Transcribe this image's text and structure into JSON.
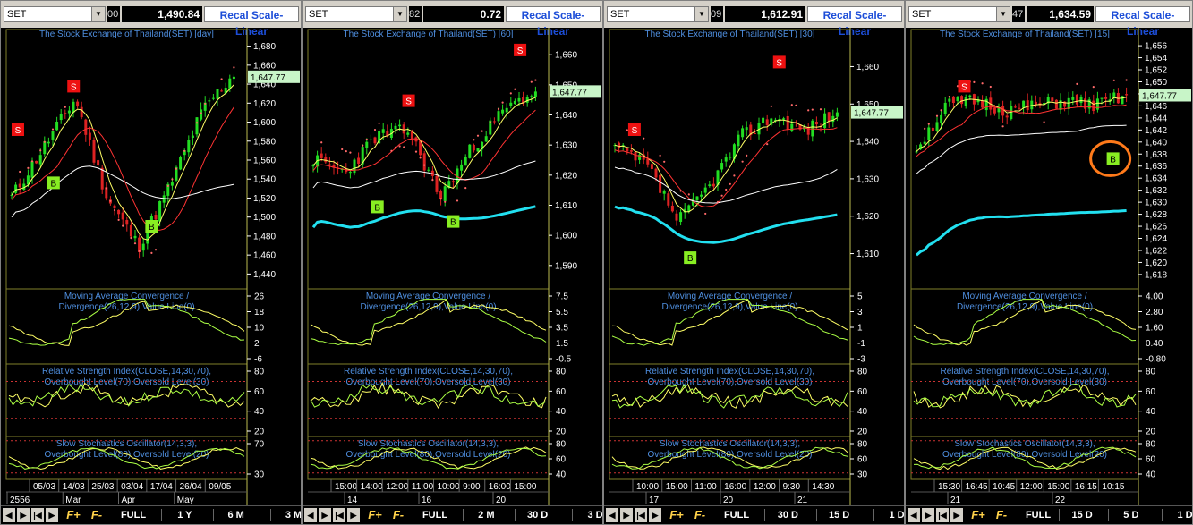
{
  "panels": [
    {
      "symbol": "SET",
      "header_fragment": "00",
      "last_value": "1,490.84",
      "recal_label": "Recal Scale-Linear",
      "title": "The Stock Exchange of Thailand(SET) [day]",
      "price_ticks": [
        "1,680",
        "1,660",
        "1,640",
        "1,620",
        "1,600",
        "1,580",
        "1,560",
        "1,540",
        "1,520",
        "1,500",
        "1,480",
        "1,460",
        "1,440"
      ],
      "price_ylim": [
        1430,
        1690
      ],
      "price_label": "1,647.77",
      "macd_title": "Moving Average Convergence / Divergence(26,12,9),Value Line(0)",
      "macd_ticks": [
        "26",
        "18",
        "10",
        "2",
        "-6"
      ],
      "rsi_title": "Relative Strength Index(CLOSE,14,30,70),Overbought Level(70),Oversold Level(30)",
      "rsi_ticks": [
        "80",
        "60",
        "40",
        "20"
      ],
      "stoch_title": "Slow Stochastics Oscillator(14,3,3),Overbought Level(80),Oversold Level(20)",
      "stoch_ticks": [
        "70",
        "30"
      ],
      "date_row": [
        "05/03",
        "14/03",
        "25/03",
        "03/04",
        "17/04",
        "26/04",
        "09/05"
      ],
      "sub_row": [
        "2556",
        "Mar",
        "Apr",
        "May"
      ],
      "toolbar": [
        "FULL",
        "1 Y",
        "6 M",
        "3 M"
      ],
      "seed": 11,
      "end_up": true
    },
    {
      "symbol": "SET",
      "header_fragment": "82",
      "last_value": "0.72",
      "recal_label": "Recal Scale-Linear",
      "title": "The Stock Exchange of Thailand(SET) [60]",
      "price_ticks": [
        "1,660",
        "1,650",
        "1,640",
        "1,630",
        "1,620",
        "1,610",
        "1,600",
        "1,590"
      ],
      "price_ylim": [
        1584,
        1666
      ],
      "price_label": "1,647.77",
      "macd_title": "Moving Average Convergence / Divergence(26,12,9),Value Line(0)",
      "macd_ticks": [
        "7.5",
        "5.5",
        "3.5",
        "1.5",
        "-0.5"
      ],
      "rsi_title": "Relative Strength Index(CLOSE,14,30,70),Overbought Level(70),Oversold Level(30)",
      "rsi_ticks": [
        "80",
        "60",
        "40",
        "20"
      ],
      "stoch_title": "Slow Stochastics Oscillator(14,3,3),Overbought Level(80),Oversold Level(20)",
      "stoch_ticks": [
        "80",
        "60",
        "40"
      ],
      "date_row": [
        "15:00",
        "14:00",
        "12:00",
        "11:00",
        "10:00",
        "9:00",
        "16:00",
        "15:00"
      ],
      "sub_row": [
        "14",
        "16",
        "20"
      ],
      "toolbar": [
        "FULL",
        "2 M",
        "30 D",
        "3 D"
      ],
      "seed": 23,
      "end_up": true
    },
    {
      "symbol": "SET",
      "header_fragment": "09",
      "last_value": "1,612.91",
      "recal_label": "Recal Scale-Linear",
      "title": "The Stock Exchange of Thailand(SET) [30]",
      "price_ticks": [
        "1,660",
        "1,650",
        "1,640",
        "1,630",
        "1,620",
        "1,610"
      ],
      "price_ylim": [
        1602,
        1668
      ],
      "price_label": "1,647.77",
      "macd_title": "Moving Average Convergence / Divergence(26,12,9),Value Line(0)",
      "macd_ticks": [
        "5",
        "3",
        "1",
        "-1",
        "-3"
      ],
      "rsi_title": "Relative Strength Index(CLOSE,14,30,70),Overbought Level(70),Oversold Level(30)",
      "rsi_ticks": [
        "80",
        "60",
        "40",
        "20"
      ],
      "stoch_title": "Slow Stochastics Oscillator(14,3,3),Overbought Level(80),Oversold Level(20)",
      "stoch_ticks": [
        "80",
        "60",
        "30"
      ],
      "date_row": [
        "10:00",
        "15:00",
        "11:00",
        "16:00",
        "12:00",
        "9:30",
        "14:30"
      ],
      "sub_row": [
        "17",
        "20",
        "21"
      ],
      "toolbar": [
        "FULL",
        "30 D",
        "15 D",
        "1 D"
      ],
      "seed": 37,
      "end_up": true
    },
    {
      "symbol": "SET",
      "header_fragment": "47",
      "last_value": "1,634.59",
      "recal_label": "Recal Scale-Linear",
      "title": "The Stock Exchange of Thailand(SET) [15]",
      "price_ticks": [
        "1,656",
        "1,654",
        "1,652",
        "1,650",
        "1,648",
        "1,646",
        "1,644",
        "1,642",
        "1,640",
        "1,638",
        "1,636",
        "1,634",
        "1,632",
        "1,630",
        "1,628",
        "1,626",
        "1,624",
        "1,622",
        "1,620",
        "1,618"
      ],
      "price_ylim": [
        1616.5,
        1657.5
      ],
      "price_label": "1,647.77",
      "macd_title": "Moving Average Convergence / Divergence(26,12,9),Value Line(0)",
      "macd_ticks": [
        "4.00",
        "2.80",
        "1.60",
        "0.40",
        "-0.80"
      ],
      "rsi_title": "Relative Strength Index(CLOSE,14,30,70),Overbought Level(70),Oversold Level(30)",
      "rsi_ticks": [
        "80",
        "60",
        "40",
        "20"
      ],
      "stoch_title": "Slow Stochastics Oscillator(14,3,3),Overbought Level(80),Oversold Level(20)",
      "stoch_ticks": [
        "80",
        "60",
        "40"
      ],
      "date_row": [
        "15:30",
        "16:45",
        "10:45",
        "12:00",
        "15:00",
        "16:15",
        "10:15"
      ],
      "sub_row": [
        "21",
        "22"
      ],
      "toolbar": [
        "FULL",
        "15 D",
        "5 D",
        "1 D"
      ],
      "seed": 51,
      "end_up": true,
      "highlight": true
    }
  ],
  "chart_data": [
    {
      "type": "line",
      "title": "The Stock Exchange of Thailand(SET) [day]",
      "ylim": [
        1430,
        1690
      ],
      "last": 1647.77
    },
    {
      "type": "line",
      "title": "The Stock Exchange of Thailand(SET) [60]",
      "ylim": [
        1584,
        1666
      ],
      "last": 1647.77
    },
    {
      "type": "line",
      "title": "The Stock Exchange of Thailand(SET) [30]",
      "ylim": [
        1602,
        1668
      ],
      "last": 1647.77
    },
    {
      "type": "line",
      "title": "The Stock Exchange of Thailand(SET) [15]",
      "ylim": [
        1616.5,
        1657.5
      ],
      "last": 1647.77
    }
  ],
  "colors": {
    "bull": "#22dd22",
    "bear": "#dd2222",
    "title": "#4f8fe0",
    "axis": "#ffffff",
    "ma_fast": "#ffff66",
    "ma_mid": "#ff3333",
    "ma_slow": "#ffffff",
    "ma_long": "#22e0f0",
    "signal_s": "#ee1111",
    "signal_b": "#88ee22",
    "dots": "#ff6a6a",
    "circle": "#ff7a1a"
  }
}
